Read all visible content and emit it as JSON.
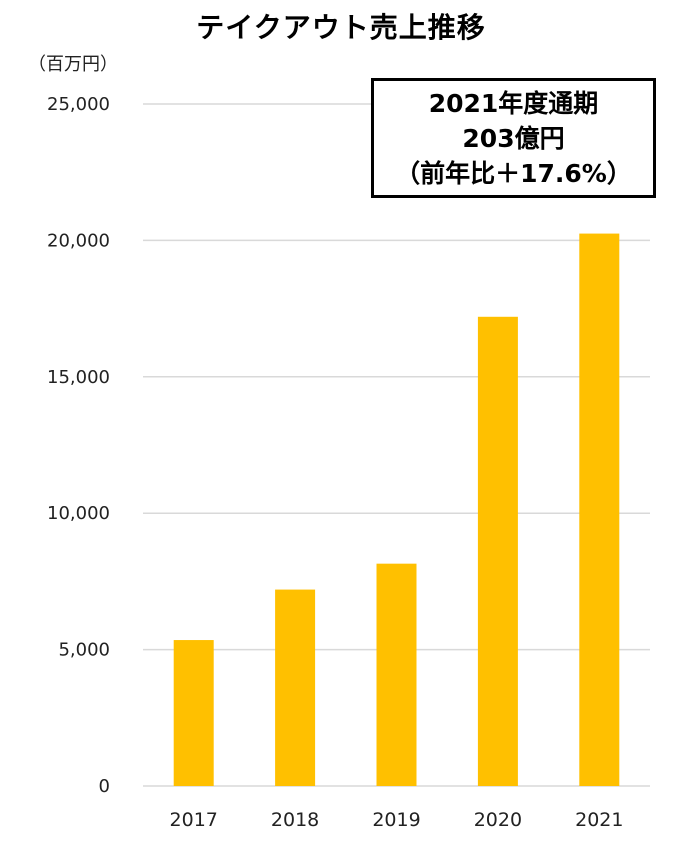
{
  "chart_data": {
    "type": "bar",
    "title": "テイクアウト売上推移",
    "unit_label": "（百万円）",
    "categories": [
      "2017",
      "2018",
      "2019",
      "2020",
      "2021"
    ],
    "values": [
      5350,
      7200,
      8150,
      17200,
      20250
    ],
    "ylim": [
      0,
      25000
    ],
    "yticks": [
      0,
      5000,
      10000,
      15000,
      20000,
      25000
    ],
    "ytick_labels": [
      "0",
      "5,000",
      "10,000",
      "15,000",
      "20,000",
      "25,000"
    ],
    "grid": true,
    "bar_color": "#FFC000",
    "grid_color": "#d9d9d9",
    "annotation": {
      "line1": "2021年度通期",
      "line2": "203億円",
      "line3": "（前年比＋17.6%）"
    }
  }
}
